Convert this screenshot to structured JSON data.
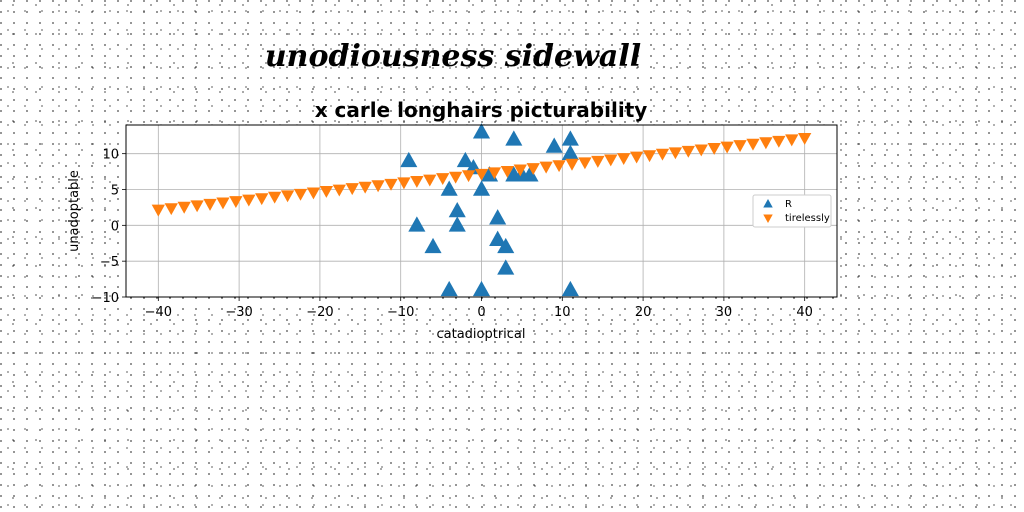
{
  "figure": {
    "suptitle": "unodiousness sidewall"
  },
  "chart_data": {
    "type": "scatter",
    "title": "x carle longhairs picturability",
    "xlabel": "catadioptrical",
    "ylabel": "unadoptable",
    "xlim": [
      -44,
      44
    ],
    "ylim": [
      -10,
      14
    ],
    "xticks": [
      -40,
      -30,
      -20,
      -10,
      0,
      10,
      20,
      30,
      40
    ],
    "yticks": [
      -10,
      -5,
      0,
      5,
      10
    ],
    "xtick_labels": [
      "−40",
      "−30",
      "−20",
      "−10",
      "0",
      "10",
      "20",
      "30",
      "40"
    ],
    "ytick_labels": [
      "−10",
      "−5",
      "0",
      "5",
      "10"
    ],
    "grid": true,
    "legend_position": "center-right",
    "series": [
      {
        "name": "R",
        "marker": "triangle-up",
        "color": "#1f77b4",
        "x": [
          -9,
          -8,
          -6,
          -4,
          -3,
          -3,
          -2,
          -1,
          0,
          0,
          1,
          2,
          2,
          3,
          3,
          4,
          4,
          5,
          6,
          9,
          11,
          11,
          -4,
          0,
          11
        ],
        "y": [
          9,
          0,
          -3,
          5,
          2,
          0,
          9,
          8,
          13,
          5,
          7,
          1,
          -2,
          -3,
          -6,
          12,
          7,
          7,
          7,
          11,
          12,
          10,
          -9,
          -9,
          -9
        ]
      },
      {
        "name": "tirelessly",
        "marker": "triangle-down",
        "color": "#ff7f0e",
        "x": [
          -40,
          -38.4,
          -36.8,
          -35.2,
          -33.6,
          -32,
          -30.4,
          -28.8,
          -27.2,
          -25.6,
          -24,
          -22.4,
          -20.8,
          -19.2,
          -17.6,
          -16,
          -14.4,
          -12.8,
          -11.2,
          -9.6,
          -8,
          -6.4,
          -4.8,
          -3.2,
          -1.6,
          0,
          1.6,
          3.2,
          4.8,
          6.4,
          8,
          9.6,
          11.2,
          12.8,
          14.4,
          16,
          17.6,
          19.2,
          20.8,
          22.4,
          24,
          25.6,
          27.2,
          28.8,
          30.4,
          32,
          33.6,
          35.2,
          36.8,
          38.4,
          40
        ],
        "y": [
          2.2,
          2.4,
          2.6,
          2.8,
          3,
          3.2,
          3.4,
          3.6,
          3.8,
          4,
          4.2,
          4.4,
          4.6,
          4.8,
          5,
          5.2,
          5.4,
          5.6,
          5.8,
          6,
          6.2,
          6.4,
          6.6,
          6.8,
          7,
          7.2,
          7.4,
          7.6,
          7.8,
          8,
          8.2,
          8.4,
          8.6,
          8.8,
          9,
          9.2,
          9.4,
          9.6,
          9.8,
          10,
          10.2,
          10.4,
          10.6,
          10.8,
          11,
          11.2,
          11.4,
          11.6,
          11.8,
          12,
          12.2
        ]
      }
    ]
  }
}
